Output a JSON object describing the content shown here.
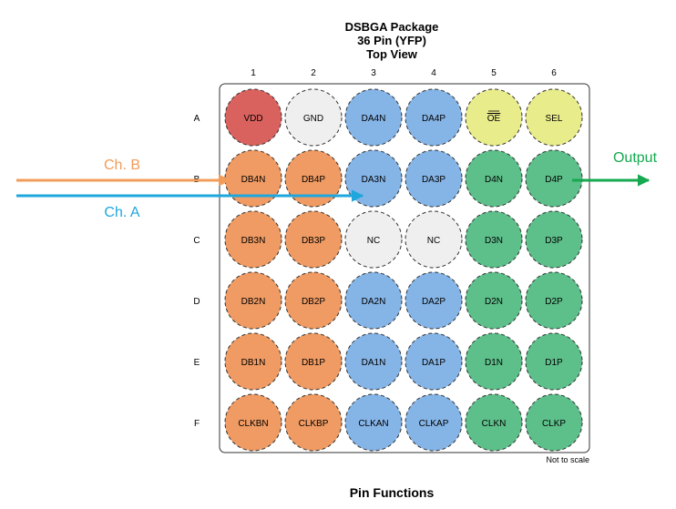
{
  "title": {
    "line1": "DSBGA Package",
    "line2": "36 Pin (YFP)",
    "line3": "Top View"
  },
  "columns": [
    "1",
    "2",
    "3",
    "4",
    "5",
    "6"
  ],
  "rows": [
    "A",
    "B",
    "C",
    "D",
    "E",
    "F"
  ],
  "pins": [
    [
      "VDD",
      "GND",
      "DA4N",
      "DA4P",
      "OE",
      "SEL"
    ],
    [
      "DB4N",
      "DB4P",
      "DA3N",
      "DA3P",
      "D4N",
      "D4P"
    ],
    [
      "DB3N",
      "DB3P",
      "NC",
      "NC",
      "D3N",
      "D3P"
    ],
    [
      "DB2N",
      "DB2P",
      "DA2N",
      "DA2P",
      "D2N",
      "D2P"
    ],
    [
      "DB1N",
      "DB1P",
      "DA1N",
      "DA1P",
      "D1N",
      "D1P"
    ],
    [
      "CLKBN",
      "CLKBP",
      "CLKAN",
      "CLKAP",
      "CLKN",
      "CLKP"
    ]
  ],
  "pin_groups": [
    [
      "power",
      "nc",
      "cha",
      "cha",
      "ctrl",
      "ctrl"
    ],
    [
      "chb",
      "chb",
      "cha",
      "cha",
      "out",
      "out"
    ],
    [
      "chb",
      "chb",
      "nc",
      "nc",
      "out",
      "out"
    ],
    [
      "chb",
      "chb",
      "cha",
      "cha",
      "out",
      "out"
    ],
    [
      "chb",
      "chb",
      "cha",
      "cha",
      "out",
      "out"
    ],
    [
      "chb",
      "chb",
      "cha",
      "cha",
      "out",
      "out"
    ]
  ],
  "overlined_pins": [
    "OE"
  ],
  "colors": {
    "power": "#d9625f",
    "nc": "#efefef",
    "cha": "#85b4e6",
    "ctrl": "#e9ec8b",
    "chb": "#ef9b63",
    "out": "#5dbf8a",
    "arrow_chb": "#f29c5a",
    "arrow_cha": "#1ea7dd",
    "arrow_out": "#16a94f"
  },
  "annotations": {
    "ch_b": "Ch. B",
    "ch_a": "Ch. A",
    "output": "Output"
  },
  "note": "Not to scale",
  "caption": "Pin Functions"
}
